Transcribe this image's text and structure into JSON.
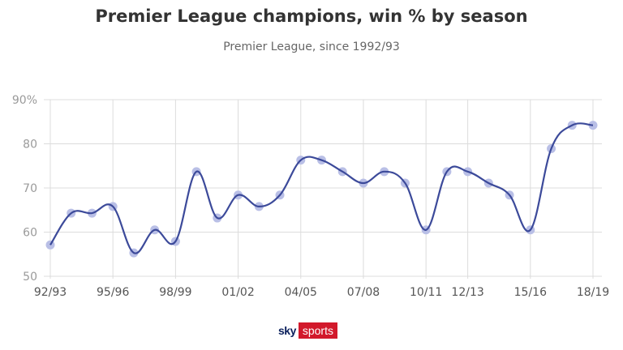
{
  "header": {
    "title": "Premier League champions, win % by season",
    "subtitle": "Premier League, since 1992/93"
  },
  "branding": {
    "sky": "sky",
    "sports": "sports",
    "brand_red": "#d2192b",
    "brand_navy": "#0a1f5c"
  },
  "chart_data": {
    "type": "line",
    "title": "Premier League champions, win % by season",
    "subtitle": "Premier League, since 1992/93",
    "xlabel": "",
    "ylabel": "",
    "ylim": [
      50,
      90
    ],
    "yticks": [
      50,
      60,
      70,
      80,
      90
    ],
    "ytick_labels": [
      "50",
      "60",
      "70",
      "80",
      "90%"
    ],
    "x_tick_labels": [
      "92/93",
      "95/96",
      "98/99",
      "01/02",
      "04/05",
      "07/08",
      "10/11",
      "12/13",
      "15/16",
      "18/19"
    ],
    "x_tick_positions": [
      "92/93",
      "95/96",
      "98/99",
      "01/02",
      "04/05",
      "07/08",
      "10/11",
      "12/13",
      "15/16",
      "18/19"
    ],
    "grid": true,
    "line_color": "#3c4a9a",
    "marker_color": "#b9bfe6",
    "series": [
      {
        "x": [
          "92/93",
          "93/94",
          "94/95",
          "95/96",
          "96/97",
          "97/98",
          "98/99",
          "99/00",
          "00/01",
          "01/02",
          "02/03",
          "03/04",
          "04/05",
          "05/06",
          "06/07",
          "07/08",
          "08/09",
          "09/10",
          "10/11",
          "11/12",
          "12/13",
          "13/14",
          "14/15",
          "15/16",
          "16/17",
          "17/18",
          "18/19"
        ],
        "values": [
          57.1,
          64.3,
          64.3,
          65.8,
          55.3,
          60.5,
          57.9,
          73.7,
          63.2,
          68.4,
          65.8,
          68.4,
          76.3,
          76.3,
          73.7,
          71.1,
          73.7,
          71.1,
          60.5,
          73.7,
          73.7,
          71.1,
          68.4,
          60.5,
          78.9,
          84.2,
          84.2
        ]
      }
    ]
  }
}
